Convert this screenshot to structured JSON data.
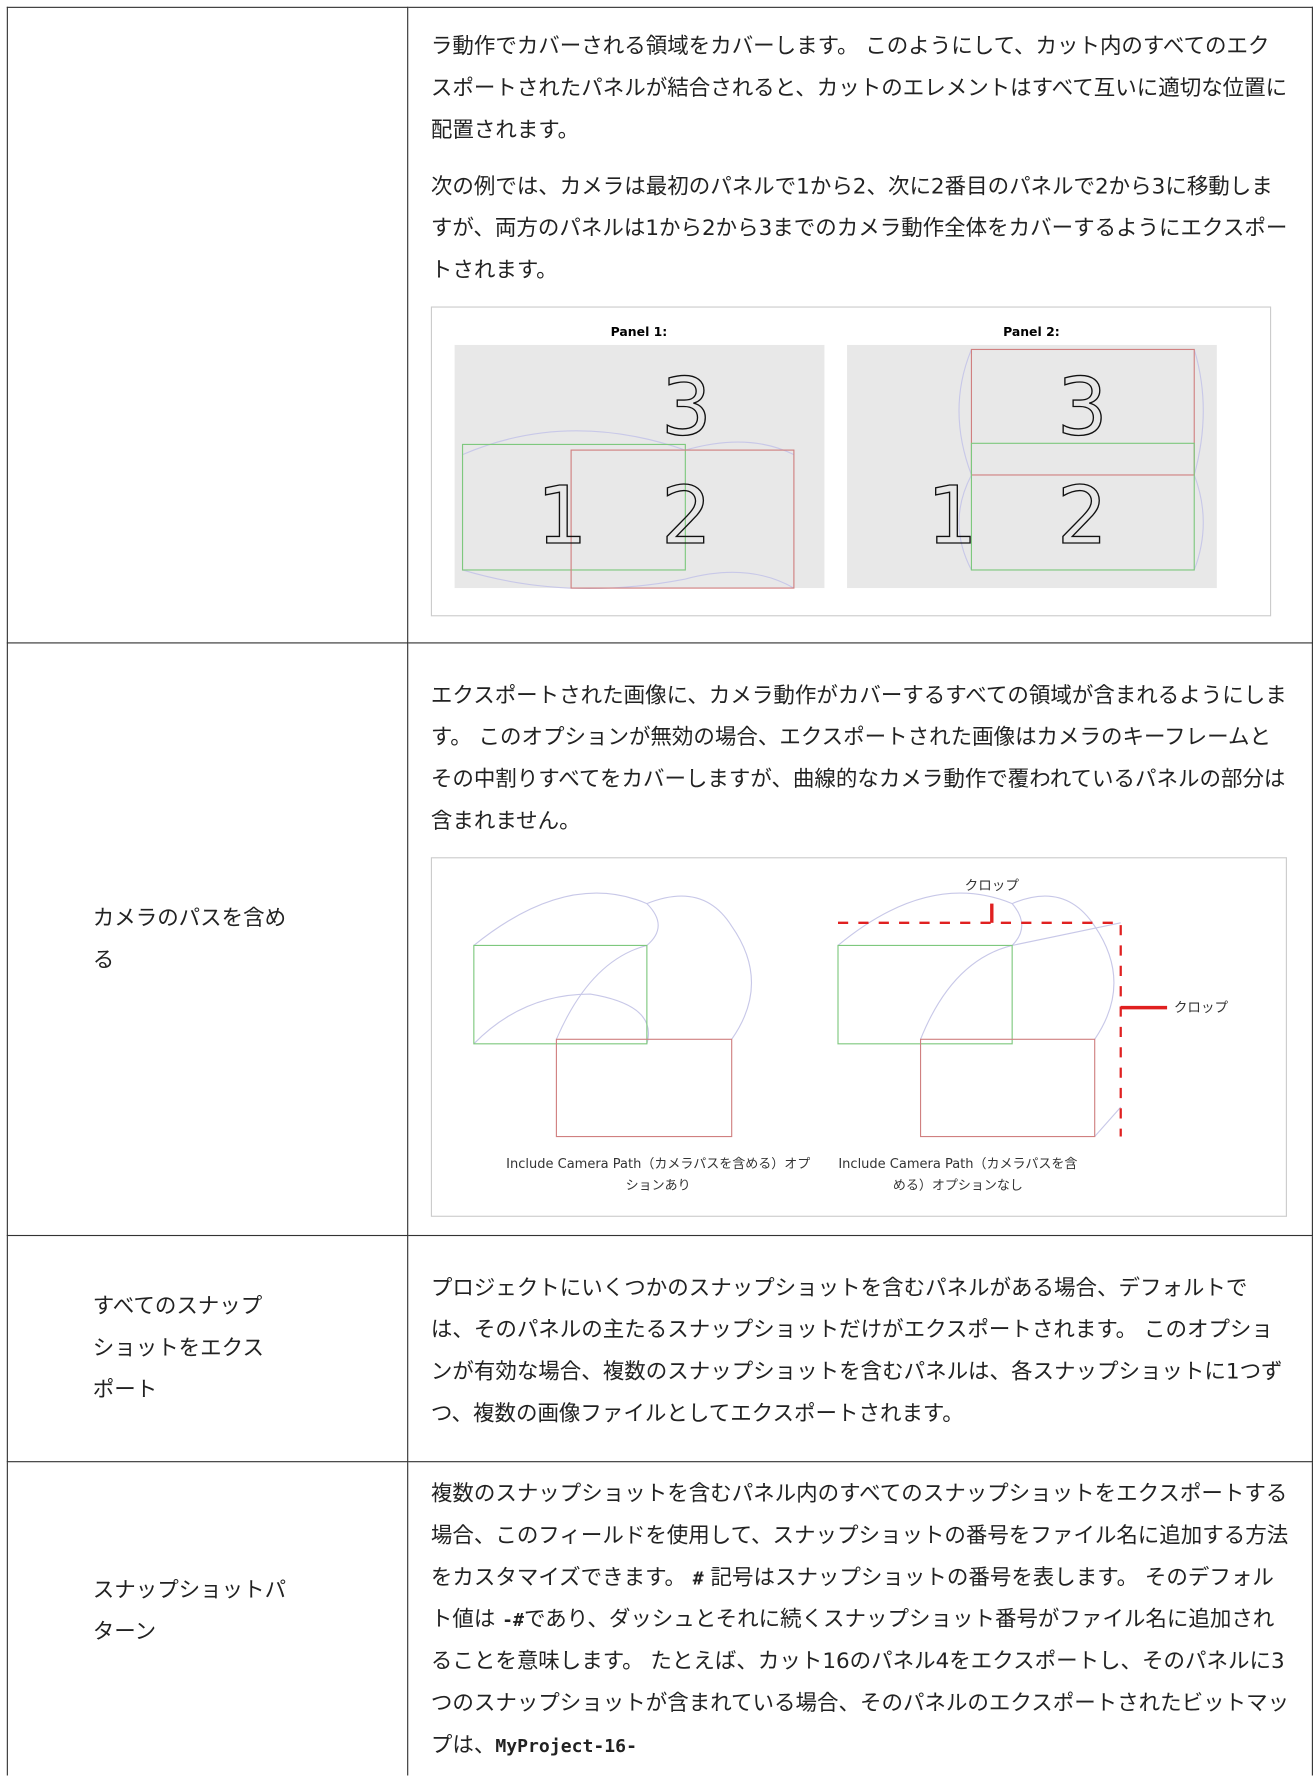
{
  "table": {
    "rows": [
      {
        "paragraphs": [
          "ラ動作でカバーされる領域をカバーします。 このようにして、カット内のすべてのエクスポートされたパネルが結合されると、カットのエレメントはすべて互いに適切な位置に配置されます。",
          "次の例では、カメラは最初のパネルで1から2、次に2番目のパネルで2から3に移動しますが、両方のパネルは1から2から3までのカメラ動作全体をカバーするようにエクスポートされます。"
        ],
        "figure": {
          "panels": [
            {
              "title": "Panel 1:",
              "numbers": [
                "3",
                "1",
                "2"
              ]
            },
            {
              "title": "Panel 2:",
              "numbers": [
                "3",
                "1",
                "2"
              ]
            }
          ]
        }
      },
      {
        "label": [
          "カメラのパスを含め",
          "る"
        ],
        "paragraphs": [
          "エクスポートされた画像に、カメラ動作がカバーするすべての領域が含まれるようにします。 このオプションが無効の場合、エクスポートされた画像はカメラのキーフレームとその中割りすべてをカバーしますが、曲線的なカメラ動作で覆われているパネルの部分は含まれません。"
        ],
        "figure": {
          "crop_labels": [
            "クロップ",
            "クロップ"
          ],
          "captions": [
            [
              "Include Camera Path（カメラパスを含める）オプ",
              "ションあり"
            ],
            [
              "Include Camera Path（カメラパスを含",
              "める）オプションなし"
            ]
          ]
        }
      },
      {
        "label": [
          "すべてのスナップ",
          "ショットをエクス",
          "ポート"
        ],
        "paragraphs": [
          "プロジェクトにいくつかのスナップショットを含むパネルがある場合、デフォルトでは、そのパネルの主たるスナップショットだけがエクスポートされます。 このオプションが有効な場合、複数のスナップショットを含むパネルは、各スナップショットに1つずつ、複数の画像ファイルとしてエクスポートされます。"
        ]
      },
      {
        "label": [
          "スナップショットパ",
          "ターン"
        ],
        "paragraphs": [
          [
            "複数のスナップショットを含むパネル内のすべてのスナップショットをエクスポートする場合、このフィールドを使用して、スナップショットの番号をファイル名に追加する方法をカスタマイズできます。 ",
            "#",
            " 記号はスナップショットの番号を表します。 そのデフォルト値は ",
            "-#",
            "であり、ダッシュとそれに続くスナップショット番号がファイル名に追加されることを意味します。 たとえば、カット16のパネル4をエクスポートし、そのパネルに3つのスナップショットが含まれている場合、そのパネルのエクスポートされたビットマップは、",
            "MyProject-16-"
          ]
        ]
      }
    ]
  }
}
